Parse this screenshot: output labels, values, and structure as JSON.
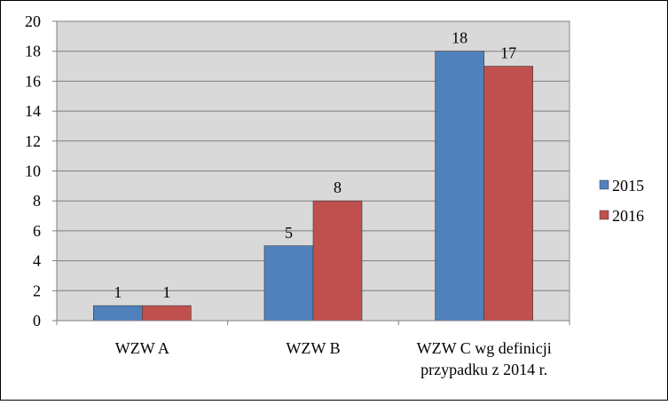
{
  "chart_data": {
    "type": "bar",
    "categories": [
      "WZW A",
      "WZW B",
      "WZW C wg definicji przypadku z 2014 r."
    ],
    "category_lines": [
      [
        "WZW A"
      ],
      [
        "WZW B"
      ],
      [
        "WZW C wg definicji",
        "przypadku z 2014 r."
      ]
    ],
    "series": [
      {
        "name": "2015",
        "values": [
          1,
          5,
          18
        ],
        "color": "#4f81bd"
      },
      {
        "name": "2016",
        "values": [
          1,
          8,
          17
        ],
        "color": "#c0504d"
      }
    ],
    "ylim": [
      0,
      20
    ],
    "yticks": [
      0,
      2,
      4,
      6,
      8,
      10,
      12,
      14,
      16,
      18,
      20
    ],
    "grid": true,
    "legend": "right",
    "plot_background": "#d9d9d9",
    "title": "",
    "xlabel": "",
    "ylabel": ""
  }
}
